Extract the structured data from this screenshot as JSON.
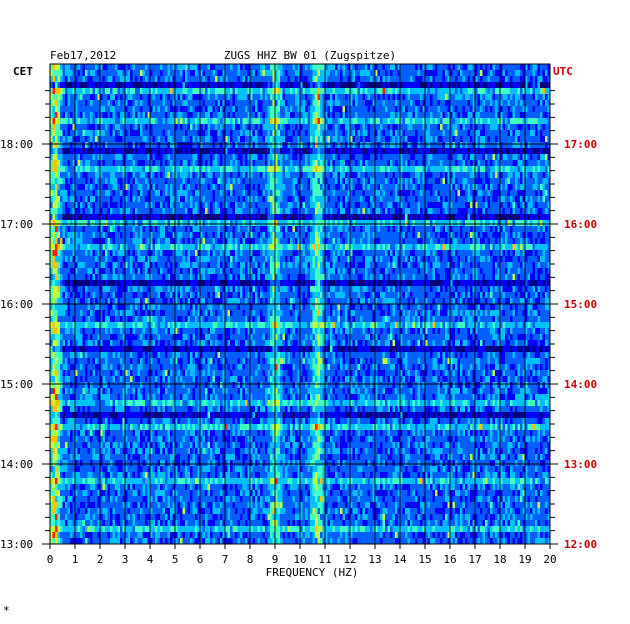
{
  "chart_data": {
    "type": "heatmap",
    "title_left": "Feb17,2012",
    "title_center": "ZUGS HHZ BW 01 (Zugspitze)",
    "left_axis_label": "CET",
    "right_axis_label": "UTC",
    "xlabel": "FREQUENCY (HZ)",
    "xlim": [
      0,
      20
    ],
    "x_ticks": [
      "0",
      "1",
      "2",
      "3",
      "4",
      "5",
      "6",
      "7",
      "8",
      "9",
      "10",
      "11",
      "12",
      "13",
      "14",
      "15",
      "16",
      "17",
      "18",
      "19",
      "20"
    ],
    "cet_ticks": [
      {
        "label": "13:00",
        "hour": 13
      },
      {
        "label": "14:00",
        "hour": 14
      },
      {
        "label": "15:00",
        "hour": 15
      },
      {
        "label": "16:00",
        "hour": 16
      },
      {
        "label": "17:00",
        "hour": 17
      },
      {
        "label": "18:00",
        "hour": 18
      }
    ],
    "utc_ticks": [
      {
        "label": "12:00",
        "hour": 12
      },
      {
        "label": "13:00",
        "hour": 13
      },
      {
        "label": "14:00",
        "hour": 14
      },
      {
        "label": "15:00",
        "hour": 15
      },
      {
        "label": "16:00",
        "hour": 16
      },
      {
        "label": "17:00",
        "hour": 17
      }
    ],
    "cet_range": [
      "13:00",
      "18:45"
    ],
    "grid": true,
    "colormap": [
      "#000080",
      "#0000ff",
      "#0060ff",
      "#00c0ff",
      "#40ffc0",
      "#c0ff40",
      "#ffc000",
      "#ff2000"
    ],
    "strong_bands_hz": [
      0.2,
      9.0,
      10.7
    ],
    "footnote": "*",
    "colors": {
      "utc": "#cc0000",
      "text": "#000000",
      "grid": "#000000"
    }
  }
}
